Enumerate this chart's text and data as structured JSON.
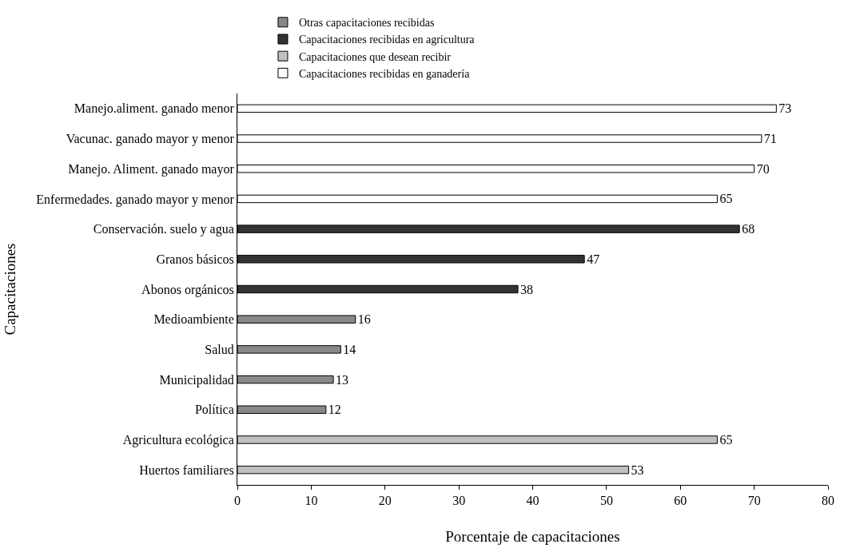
{
  "chart_data": {
    "type": "bar",
    "orientation": "horizontal",
    "xlabel": "Porcentaje de capacitaciones",
    "ylabel": "Capacitaciones",
    "categories": [
      "Manejo.aliment. ganado menor",
      "Vacunac. ganado mayor y menor",
      "Manejo. Aliment. ganado mayor",
      "Enfermedades. ganado mayor y menor",
      "Conservación. suelo y agua",
      "Granos básicos",
      "Abonos orgánicos",
      "Medioambiente",
      "Salud",
      "Municipalidad",
      "Política",
      "Agricultura ecológica",
      "Huertos familiares"
    ],
    "series": [
      {
        "name": "Otras capacitaciones recibidas",
        "color": "#888888",
        "values": [
          null,
          null,
          null,
          null,
          null,
          null,
          null,
          16,
          14,
          13,
          12,
          null,
          null
        ]
      },
      {
        "name": "Capacitaciones recibidas en agricultura",
        "color": "#333333",
        "values": [
          null,
          null,
          null,
          null,
          68,
          47,
          38,
          null,
          null,
          null,
          null,
          null,
          null
        ]
      },
      {
        "name": "Capacitaciones que desean recibir",
        "color": "#c0c0c0",
        "values": [
          null,
          null,
          null,
          null,
          null,
          null,
          null,
          null,
          null,
          null,
          null,
          65,
          53
        ]
      },
      {
        "name": "Capacitaciones recibidas en ganadería",
        "color": "#ffffff",
        "values": [
          73,
          71,
          70,
          65,
          null,
          null,
          null,
          null,
          null,
          null,
          null,
          null,
          null
        ]
      }
    ],
    "xlim": [
      0,
      80
    ],
    "xticks": [
      0,
      10,
      20,
      30,
      40,
      50,
      60,
      70,
      80
    ],
    "data_labels": true,
    "legend": "top"
  }
}
